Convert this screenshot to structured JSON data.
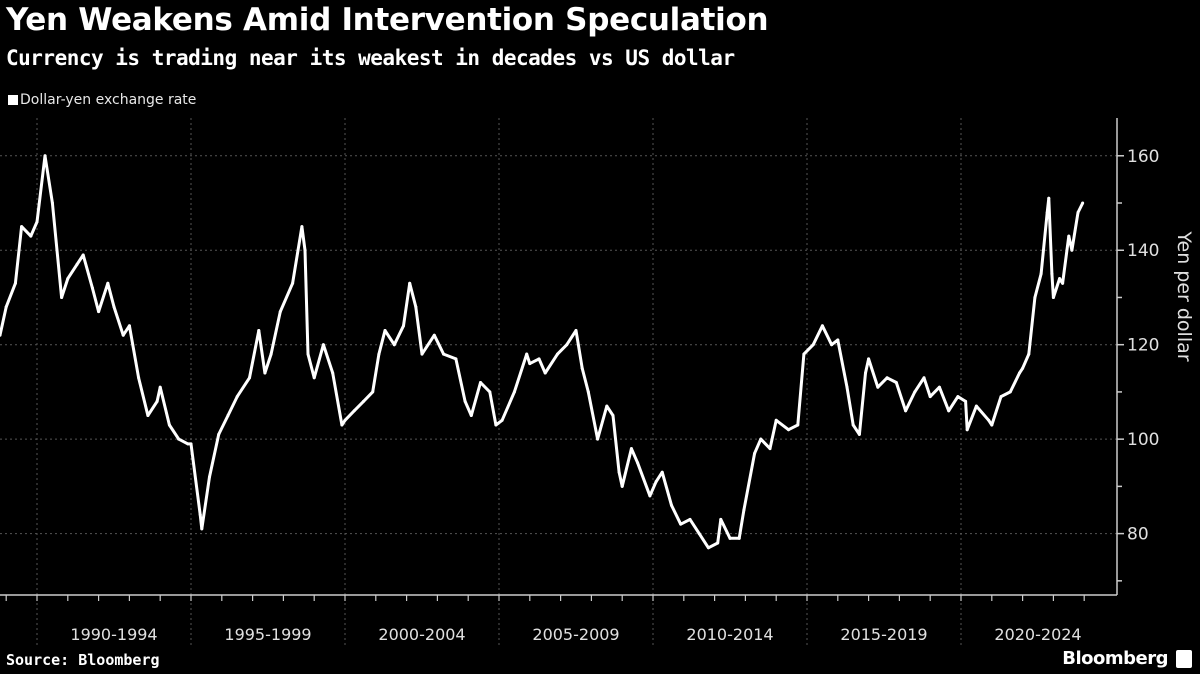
{
  "header": {
    "title": "Yen Weakens Amid Intervention Speculation",
    "subtitle": "Currency is trading near its weakest in decades vs US dollar"
  },
  "footer": {
    "source": "Source: Bloomberg",
    "brand": "Bloomberg"
  },
  "colors": {
    "background": "#000000",
    "line": "#ffffff",
    "grid": "#555555",
    "text": "#e0e0e0"
  },
  "chart_data": {
    "type": "line",
    "title": "Yen Weakens Amid Intervention Speculation",
    "subtitle": "Currency is trading near its weakest in decades vs US dollar",
    "xlabel": "",
    "ylabel": "Yen per dollar",
    "ylim": [
      67,
      168
    ],
    "xlim": [
      1988.8,
      2024.3
    ],
    "y_ticks": [
      80,
      100,
      120,
      140,
      160
    ],
    "x_categories": [
      "1990-1994",
      "1995-1999",
      "2000-2004",
      "2005-2009",
      "2010-2014",
      "2015-2019",
      "2020-2024"
    ],
    "x_category_starts": [
      1990,
      1995,
      2000,
      2005,
      2010,
      2015,
      2020
    ],
    "grid": true,
    "legend_position": "top-left",
    "series": [
      {
        "name": "Dollar-yen exchange rate",
        "x": [
          1988.8,
          1989.0,
          1989.3,
          1989.5,
          1989.8,
          1990.0,
          1990.26,
          1990.5,
          1990.8,
          1991.0,
          1991.3,
          1991.5,
          1991.8,
          1992.0,
          1992.3,
          1992.5,
          1992.8,
          1993.0,
          1993.3,
          1993.6,
          1993.9,
          1994.0,
          1994.3,
          1994.6,
          1994.9,
          1995.0,
          1995.3,
          1995.35,
          1995.6,
          1995.9,
          1996.2,
          1996.5,
          1996.9,
          1997.2,
          1997.4,
          1997.6,
          1997.9,
          1998.3,
          1998.6,
          1998.7,
          1998.8,
          1999.0,
          1999.3,
          1999.6,
          1999.9,
          2000.0,
          2000.3,
          2000.6,
          2000.9,
          2001.1,
          2001.3,
          2001.6,
          2001.9,
          2002.1,
          2002.3,
          2002.5,
          2002.9,
          2003.2,
          2003.6,
          2003.9,
          2004.1,
          2004.4,
          2004.7,
          2004.9,
          2005.1,
          2005.5,
          2005.9,
          2006.0,
          2006.3,
          2006.5,
          2006.9,
          2007.2,
          2007.5,
          2007.7,
          2007.9,
          2008.2,
          2008.5,
          2008.7,
          2008.9,
          2009.0,
          2009.3,
          2009.5,
          2009.9,
          2010.1,
          2010.3,
          2010.6,
          2010.9,
          2011.2,
          2011.5,
          2011.8,
          2012.1,
          2012.2,
          2012.5,
          2012.8,
          2012.95,
          2013.3,
          2013.5,
          2013.8,
          2014.0,
          2014.4,
          2014.7,
          2014.9,
          2015.2,
          2015.5,
          2015.8,
          2016.0,
          2016.3,
          2016.5,
          2016.7,
          2016.9,
          2017.0,
          2017.3,
          2017.6,
          2017.9,
          2018.2,
          2018.5,
          2018.8,
          2019.0,
          2019.3,
          2019.6,
          2019.9,
          2020.15,
          2020.2,
          2020.5,
          2020.9,
          2021.0,
          2021.3,
          2021.6,
          2021.9,
          2022.0,
          2022.2,
          2022.4,
          2022.6,
          2022.8,
          2022.85,
          2022.95,
          2023.0,
          2023.2,
          2023.3,
          2023.5,
          2023.6,
          2023.8,
          2023.95
        ],
        "values": [
          122,
          128,
          133,
          145,
          143,
          146,
          160,
          150,
          130,
          134,
          137,
          139,
          132,
          127,
          133,
          128,
          122,
          124,
          113,
          105,
          108,
          111,
          103,
          100,
          99,
          99,
          84,
          81,
          92,
          101,
          105,
          109,
          113,
          123,
          114,
          118,
          127,
          133,
          145,
          140,
          118,
          113,
          120,
          114,
          103,
          104,
          106,
          108,
          110,
          118,
          123,
          120,
          124,
          133,
          128,
          118,
          122,
          118,
          117,
          108,
          105,
          112,
          110,
          103,
          104,
          110,
          118,
          116,
          117,
          114,
          118,
          120,
          123,
          115,
          110,
          100,
          107,
          105,
          93,
          90,
          98,
          95,
          88,
          91,
          93,
          86,
          82,
          83,
          80,
          77,
          78,
          83,
          79,
          79,
          85,
          97,
          100,
          98,
          104,
          102,
          103,
          118,
          120,
          124,
          120,
          121,
          111,
          103,
          101,
          114,
          117,
          111,
          113,
          112,
          106,
          110,
          113,
          109,
          111,
          106,
          109,
          108,
          102,
          107,
          104,
          103,
          109,
          110,
          114,
          115,
          118,
          130,
          135,
          148,
          151,
          135,
          130,
          134,
          133,
          143,
          140,
          148,
          150
        ]
      }
    ]
  }
}
